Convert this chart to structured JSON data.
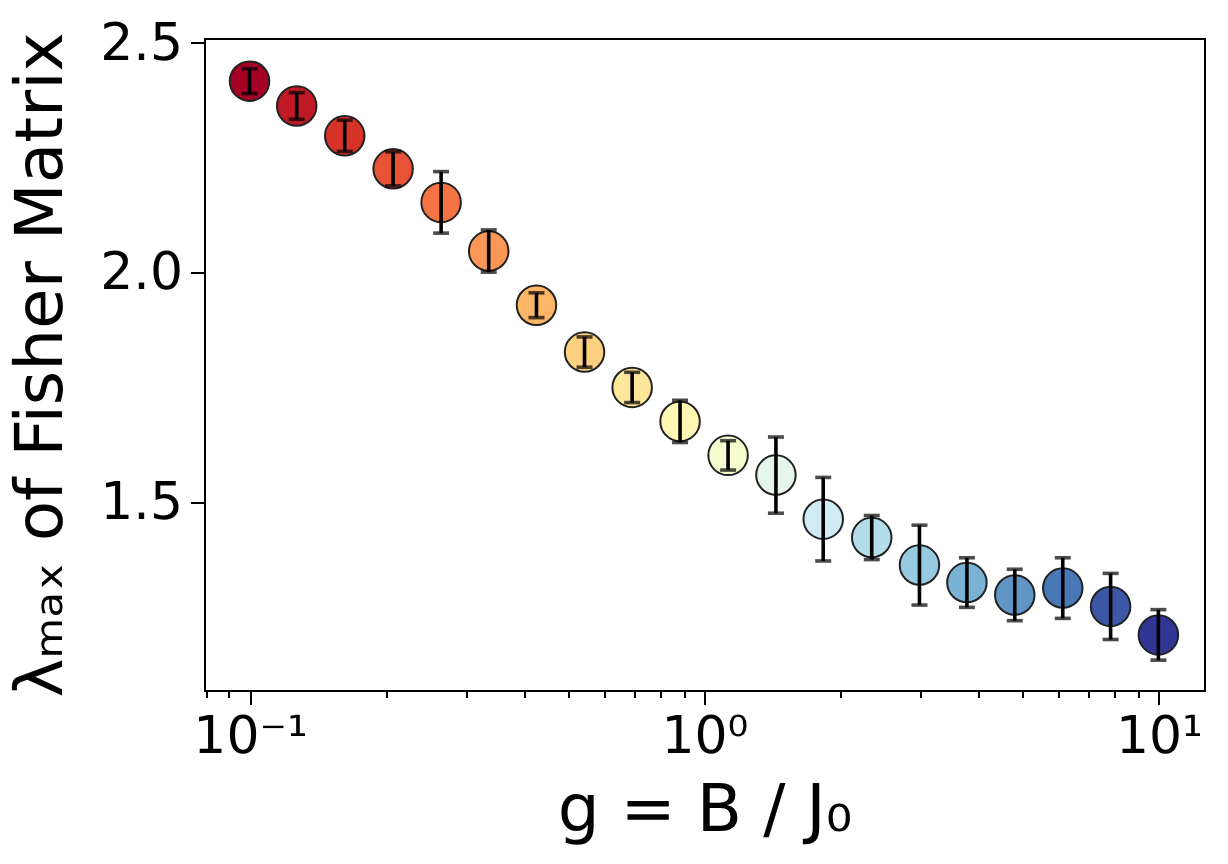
{
  "chart_data": {
    "type": "scatter",
    "xlabel": "g = B / J₀",
    "ylabel": "λₘₐₓ of Fisher Matrix",
    "x": [
      0.1,
      0.127,
      0.162,
      0.207,
      0.264,
      0.336,
      0.428,
      0.546,
      0.695,
      0.886,
      1.13,
      1.44,
      1.83,
      2.34,
      2.98,
      3.79,
      4.83,
      6.16,
      7.85,
      10
    ],
    "values": [
      2.416,
      2.362,
      2.297,
      2.225,
      2.152,
      2.046,
      1.928,
      1.826,
      1.749,
      1.675,
      1.601,
      1.558,
      1.462,
      1.422,
      1.362,
      1.324,
      1.297,
      1.312,
      1.272,
      1.21
    ],
    "errors": [
      0.027,
      0.029,
      0.034,
      0.037,
      0.067,
      0.046,
      0.027,
      0.033,
      0.033,
      0.046,
      0.032,
      0.083,
      0.091,
      0.048,
      0.087,
      0.054,
      0.056,
      0.066,
      0.072,
      0.055
    ],
    "colors": [
      "#a50026",
      "#bf1926",
      "#d83329",
      "#e85337",
      "#f57446",
      "#fa9656",
      "#fdb668",
      "#fed081",
      "#fee79a",
      "#fff7b3",
      "#f7fcce",
      "#e6f6ec",
      "#cfebf3",
      "#b3ddeb",
      "#97c9e0",
      "#7ab2d4",
      "#6095c5",
      "#4878b6",
      "#3c57a5",
      "#313695"
    ],
    "marker": "circle",
    "log": "x",
    "xlim": [
      0.0794,
      12.6
    ],
    "ylim": [
      1.09,
      2.51
    ],
    "xticks": [
      {
        "value": 0.08,
        "label": null
      },
      {
        "value": 0.09,
        "label": null
      },
      {
        "value": 0.1,
        "label": "10⁻¹"
      },
      {
        "value": 0.2,
        "label": null
      },
      {
        "value": 0.3,
        "label": null
      },
      {
        "value": 0.4,
        "label": null
      },
      {
        "value": 0.5,
        "label": null
      },
      {
        "value": 0.6,
        "label": null
      },
      {
        "value": 0.7,
        "label": null
      },
      {
        "value": 0.8,
        "label": null
      },
      {
        "value": 0.9,
        "label": null
      },
      {
        "value": 1,
        "label": "10⁰"
      },
      {
        "value": 2,
        "label": null
      },
      {
        "value": 3,
        "label": null
      },
      {
        "value": 4,
        "label": null
      },
      {
        "value": 5,
        "label": null
      },
      {
        "value": 6,
        "label": null
      },
      {
        "value": 7,
        "label": null
      },
      {
        "value": 8,
        "label": null
      },
      {
        "value": 9,
        "label": null
      },
      {
        "value": 10,
        "label": "10¹"
      }
    ],
    "yticks": [
      1.5,
      {
        "value": 2,
        "label": "2.0"
      },
      2.5
    ]
  }
}
